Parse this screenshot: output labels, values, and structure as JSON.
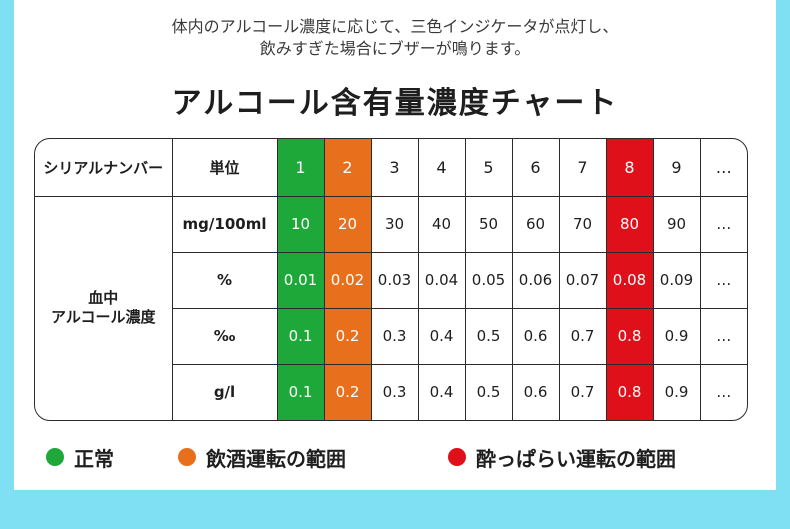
{
  "intro": {
    "line1": "体内のアルコール濃度に応じて、三色インジケータが点灯し、",
    "line2": "飲みすぎた場合にブザーが鳴ります。"
  },
  "title": "アルコール含有量濃度チャート",
  "table": {
    "serial_label": "シリアルナンバー",
    "unit_label": "単位",
    "columns": [
      "1",
      "2",
      "3",
      "4",
      "5",
      "6",
      "7",
      "8",
      "9",
      "…"
    ],
    "group_label_line1": "血中",
    "group_label_line2": "アルコール濃度",
    "rows": [
      {
        "unit": "mg/100ml",
        "values": [
          "10",
          "20",
          "30",
          "40",
          "50",
          "60",
          "70",
          "80",
          "90",
          "…"
        ]
      },
      {
        "unit": "%",
        "values": [
          "0.01",
          "0.02",
          "0.03",
          "0.04",
          "0.05",
          "0.06",
          "0.07",
          "0.08",
          "0.09",
          "…"
        ]
      },
      {
        "unit": "‰",
        "values": [
          "0.1",
          "0.2",
          "0.3",
          "0.4",
          "0.5",
          "0.6",
          "0.7",
          "0.8",
          "0.9",
          "…"
        ]
      },
      {
        "unit": "g/l",
        "values": [
          "0.1",
          "0.2",
          "0.3",
          "0.4",
          "0.5",
          "0.6",
          "0.7",
          "0.8",
          "0.9",
          "…"
        ]
      }
    ],
    "colors": {
      "normal": "#1fa83a",
      "drinking": "#e8701c",
      "drunk": "#e0101a"
    }
  },
  "legend": [
    {
      "label": "正常",
      "color": "#1fa83a"
    },
    {
      "label": "飲酒運転の範囲",
      "color": "#e8701c"
    },
    {
      "label": "酔っぱらい運転の範囲",
      "color": "#e0101a"
    }
  ]
}
